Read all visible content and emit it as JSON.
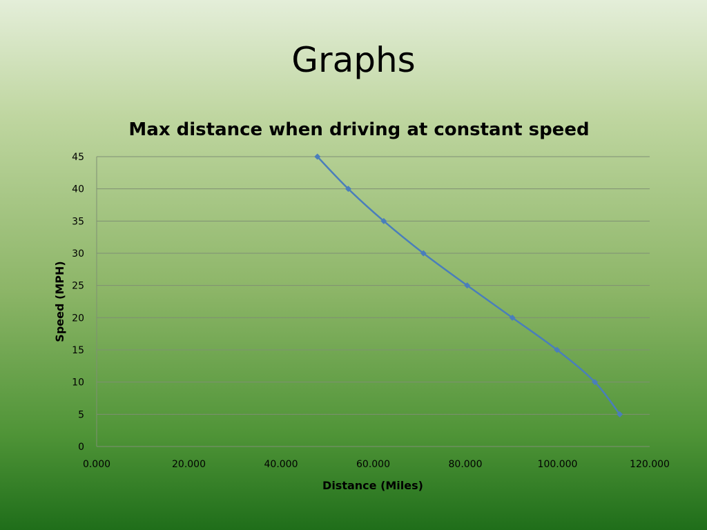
{
  "slide": {
    "title": "Graphs"
  },
  "chart_data": {
    "type": "scatter",
    "title": "Max distance when driving at constant speed",
    "xlabel": "Distance (Miles)",
    "ylabel": "Speed (MPH)",
    "xlim": [
      0,
      120
    ],
    "ylim": [
      0,
      45
    ],
    "x_ticks": [
      "0.000",
      "20.000",
      "40.000",
      "60.000",
      "80.000",
      "100.000",
      "120.000"
    ],
    "y_ticks": [
      "0",
      "5",
      "10",
      "15",
      "20",
      "25",
      "30",
      "35",
      "40",
      "45"
    ],
    "grid": "horizontal",
    "line_style": "smoothed line with diamond markers",
    "series_color": "#4a7ebb",
    "series": [
      {
        "points": [
          {
            "x": 47.9,
            "y": 45
          },
          {
            "x": 54.6,
            "y": 40
          },
          {
            "x": 62.3,
            "y": 35
          },
          {
            "x": 70.9,
            "y": 30
          },
          {
            "x": 80.4,
            "y": 25
          },
          {
            "x": 90.2,
            "y": 20
          },
          {
            "x": 99.9,
            "y": 15
          },
          {
            "x": 108.1,
            "y": 10
          },
          {
            "x": 113.5,
            "y": 5
          }
        ]
      }
    ]
  }
}
